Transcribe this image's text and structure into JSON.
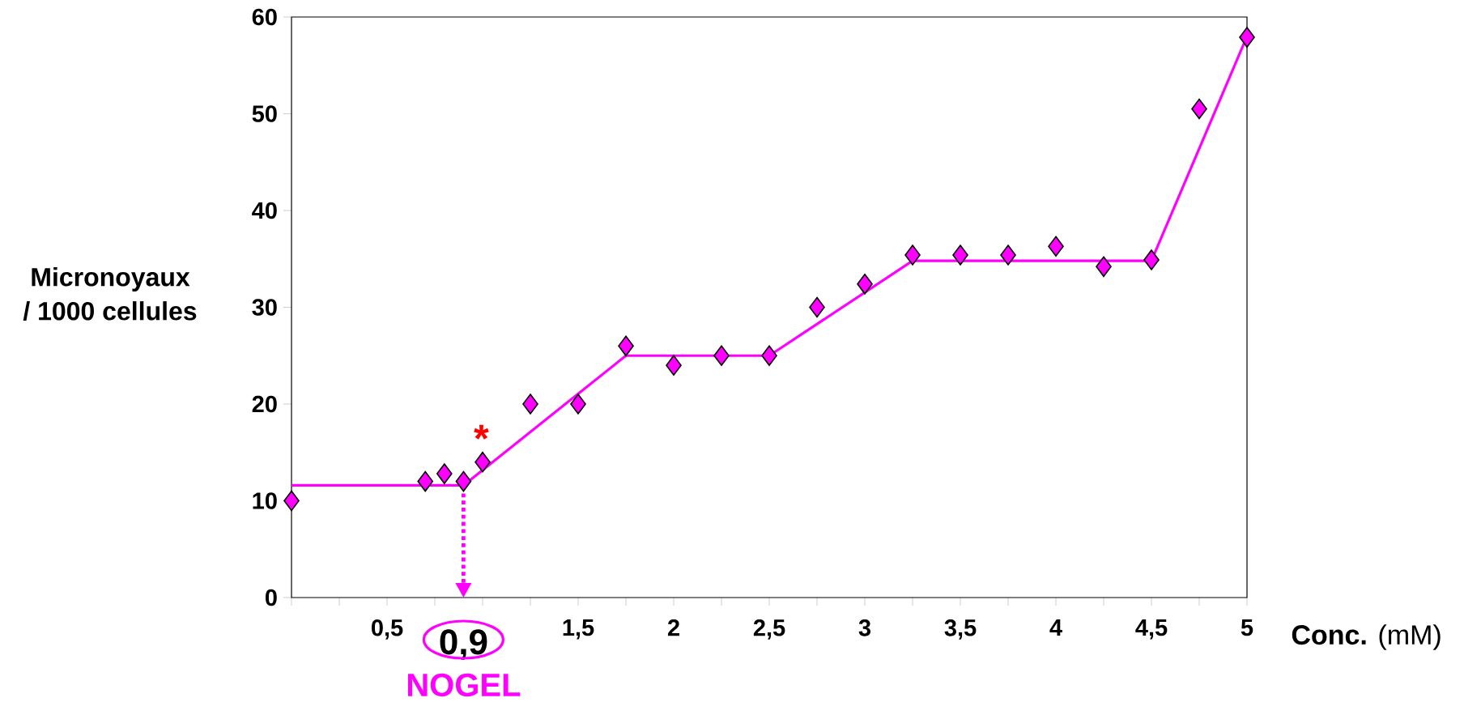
{
  "chart_data": {
    "type": "scatter",
    "xlabel": "**Conc.** (mM)",
    "ylabel": "Micronoyaux / 1000 cellules",
    "xlim": [
      0,
      5
    ],
    "ylim": [
      0,
      60
    ],
    "xticks": [
      {
        "value": 0,
        "label": null
      },
      {
        "value": 0.25,
        "label": null
      },
      {
        "value": 0.5,
        "label": "0,5"
      },
      {
        "value": 0.75,
        "label": null
      },
      {
        "value": 1,
        "label": null
      },
      {
        "value": 1.25,
        "label": null
      },
      {
        "value": 1.5,
        "label": "1,5"
      },
      {
        "value": 1.75,
        "label": null
      },
      {
        "value": 2,
        "label": "2"
      },
      {
        "value": 2.25,
        "label": null
      },
      {
        "value": 2.5,
        "label": "2,5"
      },
      {
        "value": 2.75,
        "label": null
      },
      {
        "value": 3,
        "label": "3"
      },
      {
        "value": 3.25,
        "label": null
      },
      {
        "value": 3.5,
        "label": "3,5"
      },
      {
        "value": 3.75,
        "label": null
      },
      {
        "value": 4,
        "label": "4"
      },
      {
        "value": 4.25,
        "label": null
      },
      {
        "value": 4.5,
        "label": "4,5"
      },
      {
        "value": 4.75,
        "label": null
      },
      {
        "value": 5,
        "label": "5"
      }
    ],
    "yticks": [
      0,
      10,
      20,
      30,
      40,
      50,
      60
    ],
    "grid": false,
    "series": [
      {
        "marker": "diamond",
        "color": "#ff00ff",
        "x": [
          0,
          0.7,
          0.8,
          0.9,
          1,
          1.25,
          1.5,
          1.75,
          2,
          2.25,
          2.5,
          2.75,
          3,
          3.25,
          3.5,
          3.75,
          4,
          4.25,
          4.5,
          4.75,
          5
        ],
        "values": [
          10,
          12,
          12.8,
          12,
          14,
          20,
          20,
          26,
          24,
          25,
          25,
          30,
          32.4,
          35.4,
          35.4,
          35.4,
          36.3,
          34.2,
          34.9,
          50.5,
          57.9
        ]
      },
      {
        "type": "line",
        "marker": "none",
        "color": "#ff00ff",
        "x": [
          0,
          0.9,
          1.75,
          2.5,
          3.25,
          4.5,
          5
        ],
        "values": [
          11.6,
          11.6,
          25,
          25,
          34.8,
          34.8,
          58
        ]
      }
    ],
    "ref_lines": [
      {
        "axis": "x",
        "value": 0.9,
        "label": "0,9",
        "color": "#ff00ff",
        "line_style": "dotted"
      }
    ],
    "annotations": [
      "*",
      "NOGEL"
    ]
  }
}
